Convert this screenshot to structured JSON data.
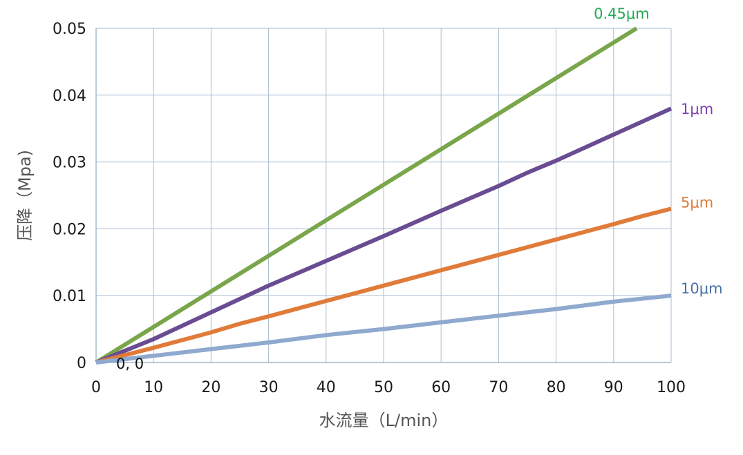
{
  "chart_data": {
    "type": "line",
    "title": "",
    "xlabel": "水流量（L/min）",
    "ylabel": "压降（Mpa)",
    "xlim": [
      0,
      100
    ],
    "ylim": [
      0,
      0.05
    ],
    "xticks": [
      "0",
      "10",
      "20",
      "30",
      "40",
      "50",
      "60",
      "70",
      "80",
      "90",
      "100"
    ],
    "yticks": [
      "0",
      "0.01",
      "0.02",
      "0.03",
      "0.04",
      "0.05"
    ],
    "grid": true,
    "legend": "right-end line labels",
    "annotations": [
      {
        "text": "0, 0",
        "x": 0,
        "y": 0
      }
    ],
    "series": [
      {
        "name": "0.45μm",
        "color": "#7aa64b",
        "label_color": "#1eaa55",
        "points": [
          [
            0,
            0
          ],
          [
            94,
            0.05
          ]
        ]
      },
      {
        "name": "1μm",
        "color": "#6a4c93",
        "label_color": "#7f3fb1",
        "points": [
          [
            0,
            0
          ],
          [
            10,
            0.0035
          ],
          [
            20,
            0.0075
          ],
          [
            25,
            0.0095
          ],
          [
            30,
            0.0115
          ],
          [
            40,
            0.0152
          ],
          [
            50,
            0.0189
          ],
          [
            60,
            0.0227
          ],
          [
            70,
            0.0264
          ],
          [
            75,
            0.0284
          ],
          [
            80,
            0.0302
          ],
          [
            90,
            0.0341
          ],
          [
            100,
            0.038
          ]
        ]
      },
      {
        "name": "5μm",
        "color": "#e07b39",
        "label_color": "#e07b39",
        "points": [
          [
            0,
            0
          ],
          [
            10,
            0.0022
          ],
          [
            20,
            0.0045
          ],
          [
            25,
            0.0058
          ],
          [
            30,
            0.0069
          ],
          [
            40,
            0.0092
          ],
          [
            50,
            0.0115
          ],
          [
            60,
            0.0138
          ],
          [
            70,
            0.0161
          ],
          [
            80,
            0.0184
          ],
          [
            90,
            0.0207
          ],
          [
            95,
            0.0219
          ],
          [
            100,
            0.023
          ]
        ]
      },
      {
        "name": "10μm",
        "color": "#8fa9cf",
        "label_color": "#4a6fa5",
        "points": [
          [
            0,
            0
          ],
          [
            10,
            0.001
          ],
          [
            20,
            0.002
          ],
          [
            30,
            0.003
          ],
          [
            40,
            0.0041
          ],
          [
            50,
            0.005
          ],
          [
            60,
            0.006
          ],
          [
            70,
            0.007
          ],
          [
            75,
            0.0075
          ],
          [
            80,
            0.008
          ],
          [
            90,
            0.0091
          ],
          [
            100,
            0.01
          ]
        ]
      }
    ]
  }
}
